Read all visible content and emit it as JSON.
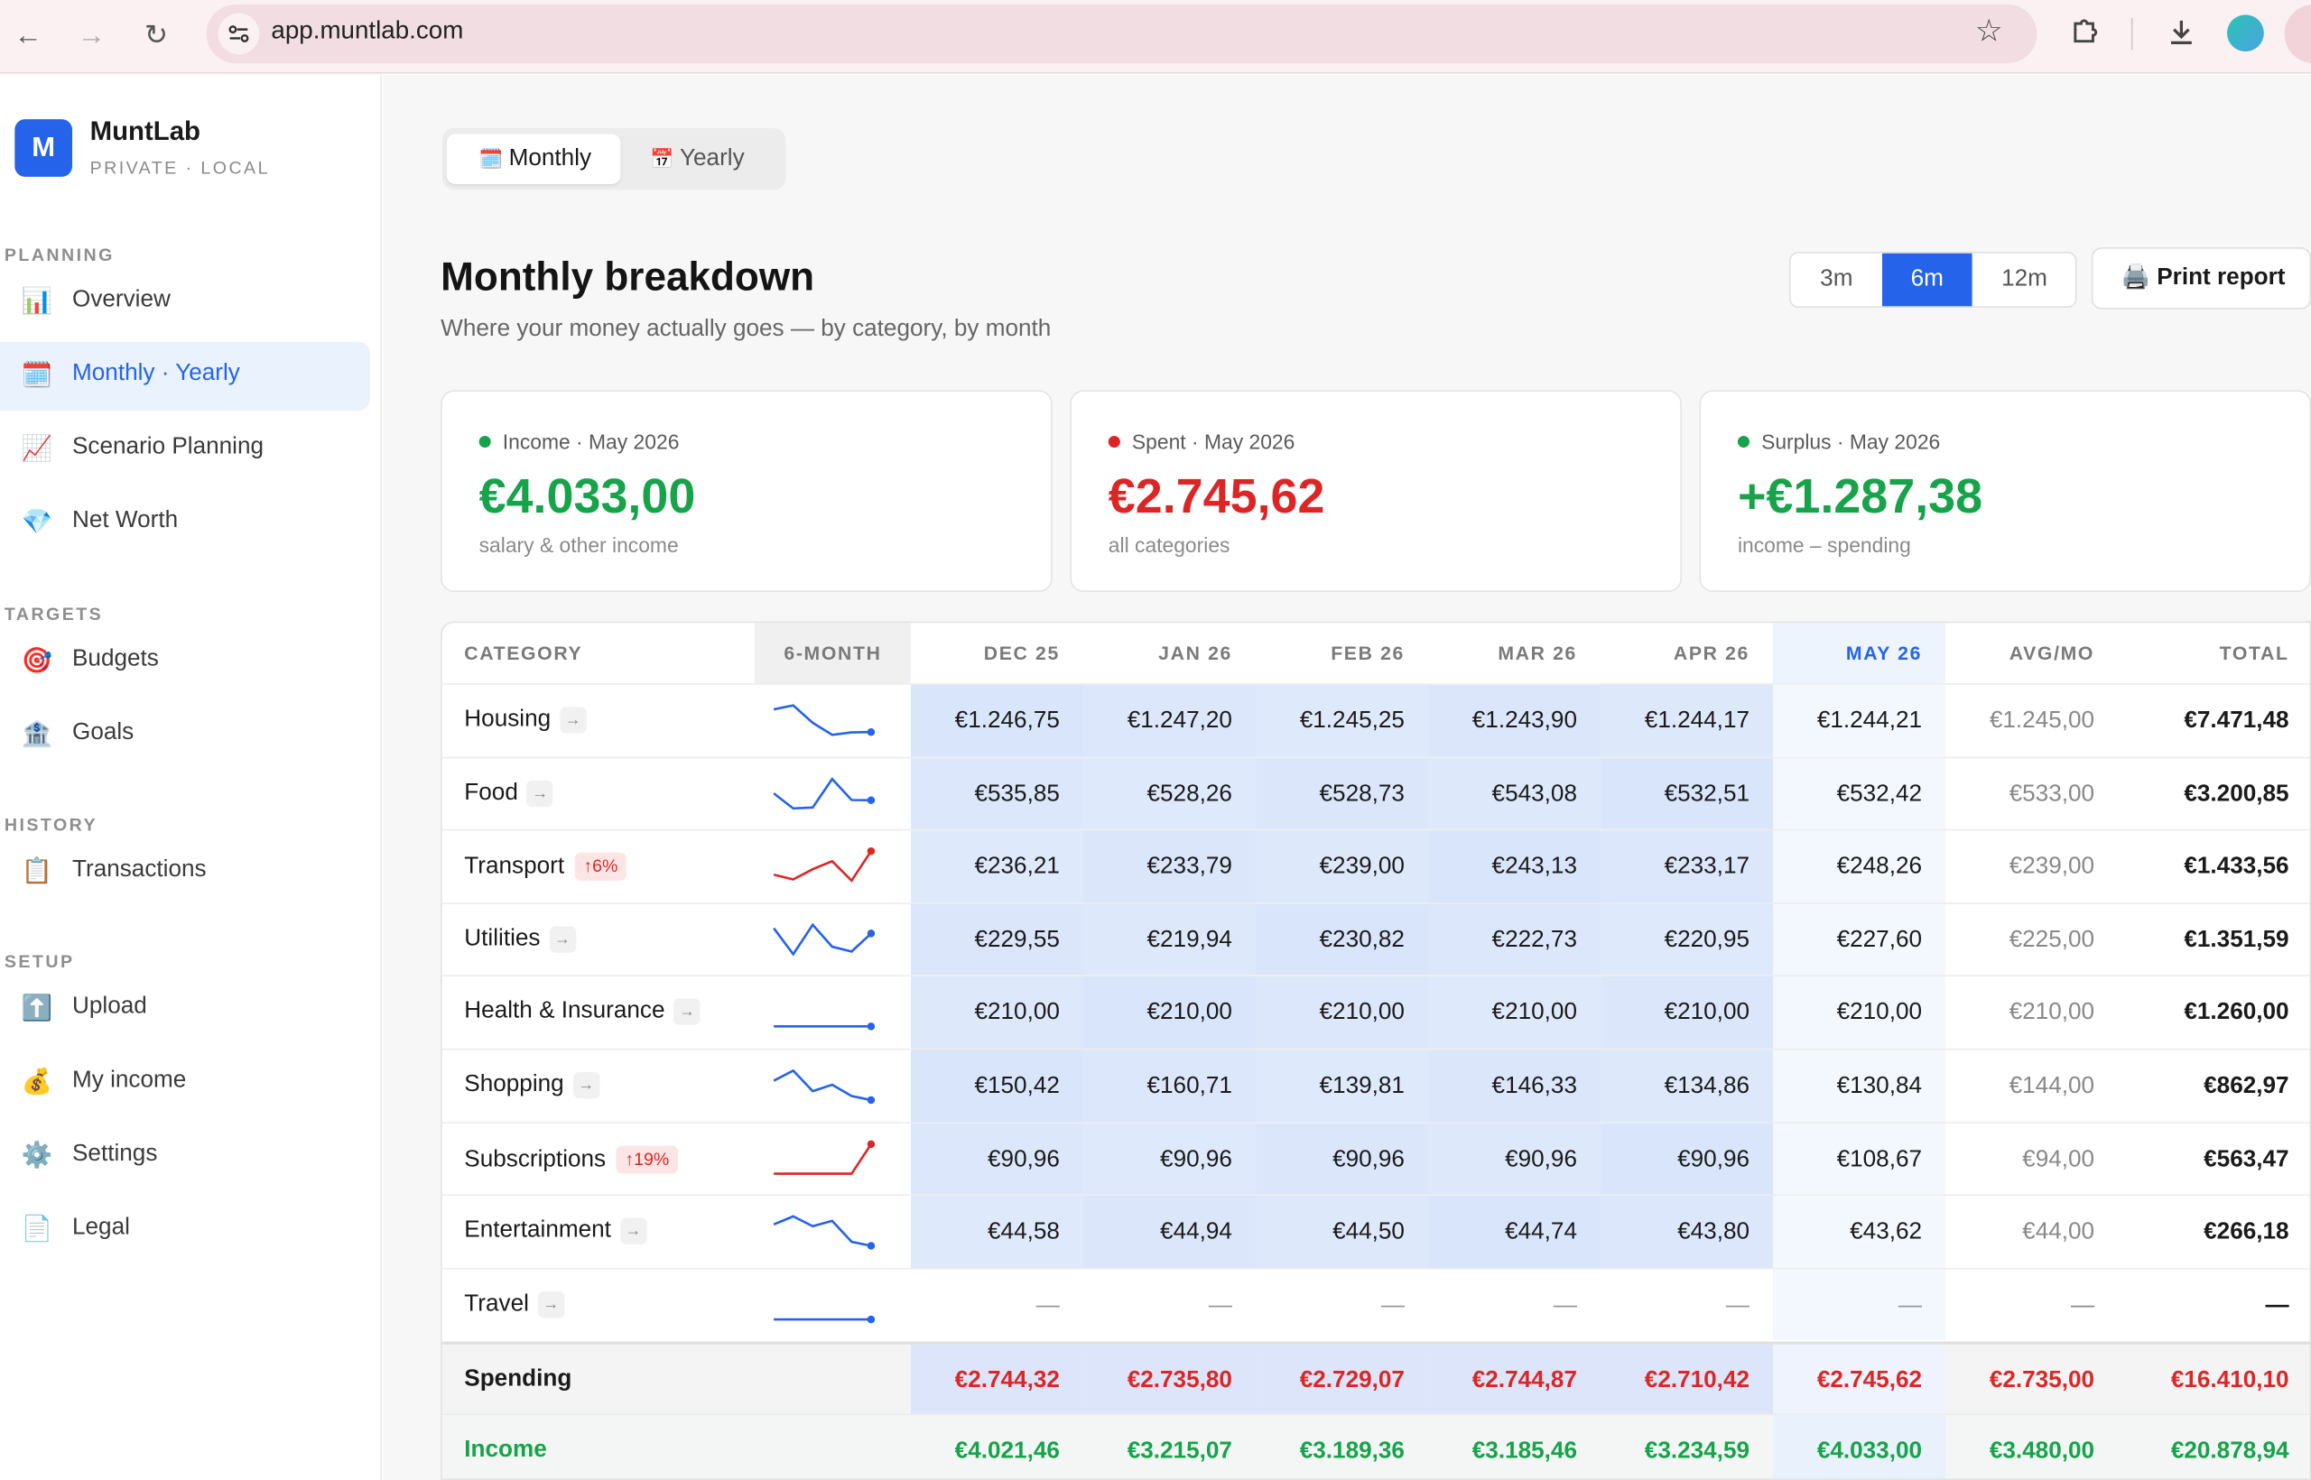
{
  "browser": {
    "url": "app.muntlab.com"
  },
  "app": {
    "logo_letter": "M",
    "name": "MuntLab",
    "subtitle": "PRIVATE · LOCAL"
  },
  "sidebar": {
    "sections": [
      {
        "title": "PLANNING",
        "items": [
          {
            "icon": "bar-chart-icon",
            "glyph": "📊",
            "label": "Overview"
          },
          {
            "icon": "calendar-icon",
            "glyph": "🗓️",
            "label": "Monthly · Yearly",
            "active": true
          },
          {
            "icon": "trend-up-icon",
            "glyph": "📈",
            "label": "Scenario Planning"
          },
          {
            "icon": "gem-icon",
            "glyph": "💎",
            "label": "Net Worth"
          }
        ]
      },
      {
        "title": "TARGETS",
        "items": [
          {
            "icon": "target-icon",
            "glyph": "🎯",
            "label": "Budgets"
          },
          {
            "icon": "bank-icon",
            "glyph": "🏦",
            "label": "Goals"
          }
        ]
      },
      {
        "title": "HISTORY",
        "items": [
          {
            "icon": "clipboard-icon",
            "glyph": "📋",
            "label": "Transactions"
          }
        ]
      },
      {
        "title": "SETUP",
        "items": [
          {
            "icon": "upload-icon",
            "glyph": "⬆️",
            "label": "Upload"
          },
          {
            "icon": "money-bag-icon",
            "glyph": "💰",
            "label": "My income"
          },
          {
            "icon": "gear-icon",
            "glyph": "⚙️",
            "label": "Settings"
          },
          {
            "icon": "document-icon",
            "glyph": "📄",
            "label": "Legal"
          }
        ]
      }
    ]
  },
  "view_tabs": [
    {
      "glyph": "🗓️",
      "label": "Monthly",
      "active": true
    },
    {
      "glyph": "📅",
      "label": "Yearly"
    }
  ],
  "page": {
    "title": "Monthly breakdown",
    "subtitle": "Where your money actually goes — by category, by month"
  },
  "range": {
    "options": [
      "3m",
      "6m",
      "12m"
    ],
    "selected": "6m"
  },
  "print_label": "🖨️ Print report",
  "cards": [
    {
      "label": "Income · May 2026",
      "value": "€4.033,00",
      "caption": "salary & other income",
      "color": "#16a34a"
    },
    {
      "label": "Spent · May 2026",
      "value": "€2.745,62",
      "caption": "all categories",
      "color": "#dc2626"
    },
    {
      "label": "Surplus · May 2026",
      "value": "+€1.287,38",
      "caption": "income – spending",
      "color": "#16a34a"
    }
  ],
  "table": {
    "headers": [
      "CATEGORY",
      "6-MONTH",
      "DEC 25",
      "JAN 26",
      "FEB 26",
      "MAR 26",
      "APR 26",
      "MAY 26",
      "AVG/MO",
      "TOTAL"
    ],
    "rows": [
      {
        "category": "Housing",
        "badge": "",
        "values": [
          "€1.246,75",
          "€1.247,20",
          "€1.245,25",
          "€1.243,90",
          "€1.244,17",
          "€1.244,21"
        ],
        "avg": "€1.245,00",
        "total": "€7.471,48",
        "trend": [
          1246.75,
          1247.2,
          1245.25,
          1243.9,
          1244.17,
          1244.21
        ],
        "color": "#2563eb"
      },
      {
        "category": "Food",
        "badge": "",
        "values": [
          "€535,85",
          "€528,26",
          "€528,73",
          "€543,08",
          "€532,51",
          "€532,42"
        ],
        "avg": "€533,00",
        "total": "€3.200,85",
        "trend": [
          535.85,
          528.26,
          528.73,
          543.08,
          532.51,
          532.42
        ],
        "color": "#2563eb"
      },
      {
        "category": "Transport",
        "badge": "↑6%",
        "values": [
          "€236,21",
          "€233,79",
          "€239,00",
          "€243,13",
          "€233,17",
          "€248,26"
        ],
        "avg": "€239,00",
        "total": "€1.433,56",
        "trend": [
          236.21,
          233.79,
          239.0,
          243.13,
          233.17,
          248.26
        ],
        "color": "#dc2626"
      },
      {
        "category": "Utilities",
        "badge": "",
        "values": [
          "€229,55",
          "€219,94",
          "€230,82",
          "€222,73",
          "€220,95",
          "€227,60"
        ],
        "avg": "€225,00",
        "total": "€1.351,59",
        "trend": [
          229.55,
          219.94,
          230.82,
          222.73,
          220.95,
          227.6
        ],
        "color": "#2563eb"
      },
      {
        "category": "Health & Insurance",
        "badge": "",
        "values": [
          "€210,00",
          "€210,00",
          "€210,00",
          "€210,00",
          "€210,00",
          "€210,00"
        ],
        "avg": "€210,00",
        "total": "€1.260,00",
        "trend": [
          210,
          210,
          210,
          210,
          210,
          210
        ],
        "color": "#2563eb"
      },
      {
        "category": "Shopping",
        "badge": "",
        "values": [
          "€150,42",
          "€160,71",
          "€139,81",
          "€146,33",
          "€134,86",
          "€130,84"
        ],
        "avg": "€144,00",
        "total": "€862,97",
        "trend": [
          150.42,
          160.71,
          139.81,
          146.33,
          134.86,
          130.84
        ],
        "color": "#2563eb"
      },
      {
        "category": "Subscriptions",
        "badge": "↑19%",
        "values": [
          "€90,96",
          "€90,96",
          "€90,96",
          "€90,96",
          "€90,96",
          "€108,67"
        ],
        "avg": "€94,00",
        "total": "€563,47",
        "trend": [
          90.96,
          90.96,
          90.96,
          90.96,
          90.96,
          108.67
        ],
        "color": "#dc2626"
      },
      {
        "category": "Entertainment",
        "badge": "",
        "values": [
          "€44,58",
          "€44,94",
          "€44,50",
          "€44,74",
          "€43,80",
          "€43,62"
        ],
        "avg": "€44,00",
        "total": "€266,18",
        "trend": [
          44.58,
          44.94,
          44.5,
          44.74,
          43.8,
          43.62
        ],
        "color": "#2563eb"
      },
      {
        "category": "Travel",
        "badge": "",
        "values": [
          "—",
          "—",
          "—",
          "—",
          "—",
          "—"
        ],
        "avg": "—",
        "total": "—",
        "trend": [
          0,
          0,
          0,
          0,
          0,
          0
        ],
        "color": "#2563eb"
      }
    ],
    "spending": {
      "label": "Spending",
      "values": [
        "€2.744,32",
        "€2.735,80",
        "€2.729,07",
        "€2.744,87",
        "€2.710,42",
        "€2.745,62"
      ],
      "avg": "€2.735,00",
      "total": "€16.410,10"
    },
    "income": {
      "label": "Income",
      "values": [
        "€4.021,46",
        "€3.215,07",
        "€3.189,36",
        "€3.185,46",
        "€3.234,59",
        "€4.033,00"
      ],
      "avg": "€3.480,00",
      "total": "€20.878,94"
    }
  }
}
